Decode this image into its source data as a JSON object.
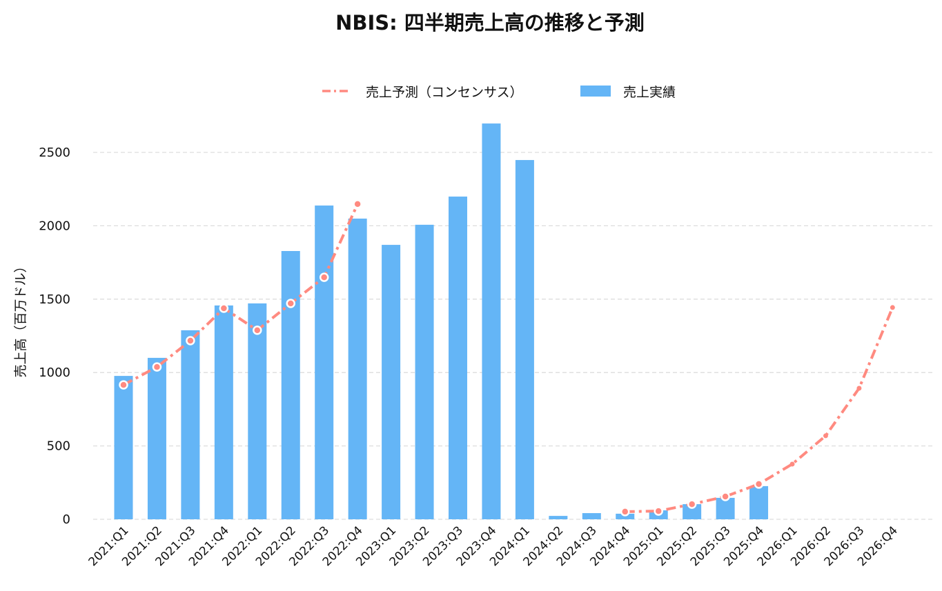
{
  "chart_data": {
    "type": "bar",
    "title": "NBIS: 四半期売上高の推移と予測",
    "xlabel": "",
    "ylabel": "売上高（百万ドル）",
    "ylim": [
      0,
      2700
    ],
    "yticks": [
      0,
      500,
      1000,
      1500,
      2000,
      2500
    ],
    "grid": "y, dashed",
    "legend_placement": "top-center",
    "categories": [
      "2021:Q1",
      "2021:Q2",
      "2021:Q3",
      "2021:Q4",
      "2022:Q1",
      "2022:Q2",
      "2022:Q3",
      "2022:Q4",
      "2023:Q1",
      "2023:Q2",
      "2023:Q3",
      "2023:Q4",
      "2024:Q1",
      "2024:Q2",
      "2024:Q3",
      "2024:Q4",
      "2025:Q1",
      "2025:Q2",
      "2025:Q3",
      "2025:Q4",
      "2026:Q1",
      "2026:Q2",
      "2026:Q3",
      "2026:Q4"
    ],
    "series": [
      {
        "name": "売上予測（コンセンサス）",
        "type": "line",
        "color": "#FF8A80",
        "values": [
          916,
          1038,
          1217,
          1438,
          1288,
          1471,
          1649,
          2148,
          null,
          null,
          null,
          null,
          null,
          null,
          null,
          52,
          56,
          103,
          155,
          240,
          376,
          569,
          893,
          1443
        ]
      },
      {
        "name": "売上実績",
        "type": "bar",
        "color": "#64B5F6",
        "values": [
          977,
          1100,
          1288,
          1457,
          1471,
          1828,
          2138,
          2049,
          1870,
          2007,
          2199,
          2697,
          2448,
          23,
          42,
          38,
          61,
          103,
          146,
          226,
          null,
          null,
          null,
          null
        ]
      }
    ]
  }
}
